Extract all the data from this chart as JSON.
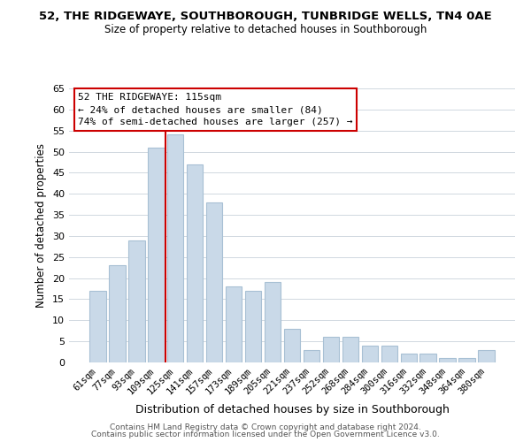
{
  "title1": "52, THE RIDGEWAYE, SOUTHBOROUGH, TUNBRIDGE WELLS, TN4 0AE",
  "title2": "Size of property relative to detached houses in Southborough",
  "xlabel": "Distribution of detached houses by size in Southborough",
  "ylabel": "Number of detached properties",
  "bar_labels": [
    "61sqm",
    "77sqm",
    "93sqm",
    "109sqm",
    "125sqm",
    "141sqm",
    "157sqm",
    "173sqm",
    "189sqm",
    "205sqm",
    "221sqm",
    "237sqm",
    "252sqm",
    "268sqm",
    "284sqm",
    "300sqm",
    "316sqm",
    "332sqm",
    "348sqm",
    "364sqm",
    "380sqm"
  ],
  "bar_values": [
    17,
    23,
    29,
    51,
    54,
    47,
    38,
    18,
    17,
    19,
    8,
    3,
    6,
    6,
    4,
    4,
    2,
    2,
    1,
    1,
    3
  ],
  "bar_color": "#c9d9e8",
  "bar_edge_color": "#a8c0d4",
  "vline_x": 3.5,
  "vline_color": "#cc0000",
  "ylim": [
    0,
    65
  ],
  "yticks": [
    0,
    5,
    10,
    15,
    20,
    25,
    30,
    35,
    40,
    45,
    50,
    55,
    60,
    65
  ],
  "annotation_text_line1": "52 THE RIDGEWAYE: 115sqm",
  "annotation_text_line2": "← 24% of detached houses are smaller (84)",
  "annotation_text_line3": "74% of semi-detached houses are larger (257) →",
  "footer1": "Contains HM Land Registry data © Crown copyright and database right 2024.",
  "footer2": "Contains public sector information licensed under the Open Government Licence v3.0."
}
